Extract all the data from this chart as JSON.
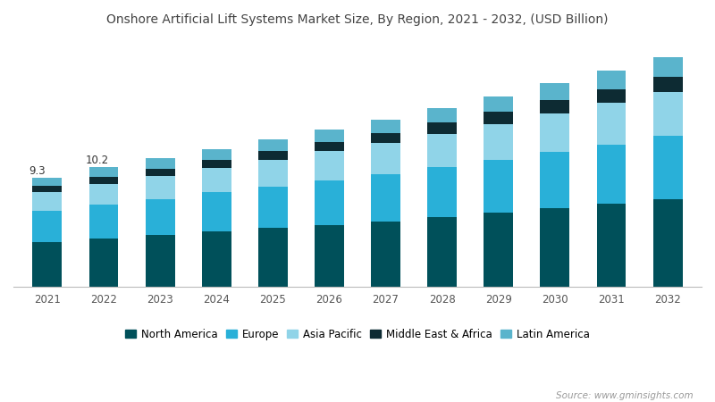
{
  "title": "Onshore Artificial Lift Systems Market Size, By Region, 2021 - 2032, (USD Billion)",
  "source": "Source: www.gminsights.com",
  "years": [
    2021,
    2022,
    2023,
    2024,
    2025,
    2026,
    2027,
    2028,
    2029,
    2030,
    2031,
    2032
  ],
  "annotations": {
    "2021": "9.3",
    "2022": "10.2"
  },
  "regions": [
    "North America",
    "Europe",
    "Asia Pacific",
    "Middle East & Africa",
    "Latin America"
  ],
  "colors": [
    "#00505a",
    "#29b0d8",
    "#90d4e8",
    "#0d2b33",
    "#5ab4cc"
  ],
  "data": {
    "North America": [
      3.8,
      4.1,
      4.4,
      4.7,
      5.0,
      5.3,
      5.6,
      5.95,
      6.3,
      6.7,
      7.1,
      7.5
    ],
    "Europe": [
      2.7,
      2.9,
      3.1,
      3.35,
      3.55,
      3.8,
      4.0,
      4.25,
      4.5,
      4.8,
      5.05,
      5.35
    ],
    "Asia Pacific": [
      1.6,
      1.8,
      1.95,
      2.1,
      2.3,
      2.45,
      2.65,
      2.85,
      3.1,
      3.3,
      3.55,
      3.8
    ],
    "Middle East & Africa": [
      0.55,
      0.6,
      0.65,
      0.7,
      0.75,
      0.82,
      0.88,
      0.95,
      1.02,
      1.1,
      1.18,
      1.28
    ],
    "Latin America": [
      0.65,
      0.8,
      0.85,
      0.92,
      1.0,
      1.08,
      1.15,
      1.25,
      1.35,
      1.45,
      1.55,
      1.67
    ]
  },
  "ylim": [
    0,
    21
  ],
  "bar_width": 0.52,
  "background_color": "#ffffff",
  "title_color": "#444444",
  "title_fontsize": 10.0,
  "tick_fontsize": 8.5,
  "legend_fontsize": 8.5,
  "source_fontsize": 7.5
}
